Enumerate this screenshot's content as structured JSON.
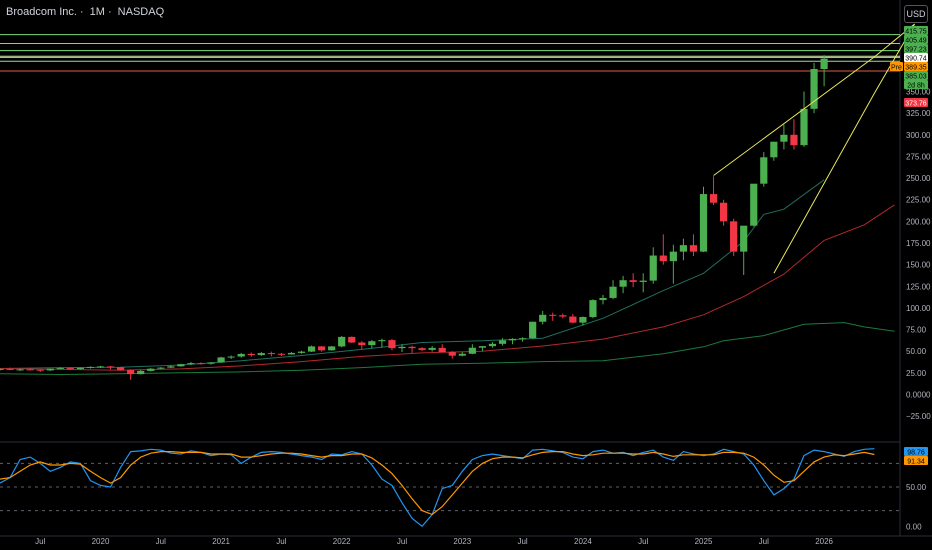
{
  "header": {
    "symbol_name": "Broadcom Inc.",
    "interval": "1M",
    "exchange": "NASDAQ",
    "separator": "·",
    "currency": "USD"
  },
  "colors": {
    "background": "#000000",
    "up": "#4caf50",
    "down": "#f23645",
    "ma_red": "#b2292e",
    "ma_teal": "#1f6f5f",
    "ma_green": "#1b7a3e",
    "wedge": "#e8e85a",
    "level_green": "#7cdd7c",
    "level_orange": "#f4a64a",
    "level_red": "#e05a4a",
    "rsi_blue": "#2196f3",
    "rsi_orange": "#ff9800"
  },
  "price_badges": [
    {
      "text": "415.75",
      "bg": "#4caf50",
      "fg": "#000000"
    },
    {
      "text": "405.49",
      "bg": "#4caf50",
      "fg": "#000000"
    },
    {
      "text": "397.23",
      "bg": "#4caf50",
      "fg": "#000000"
    },
    {
      "text": "390.74",
      "bg": "#ffffff",
      "fg": "#000000"
    },
    {
      "text": "Pre",
      "bg": "#ff9800",
      "fg": "#000000"
    },
    {
      "text": "389.35",
      "bg": "#ff9800",
      "fg": "#000000"
    },
    {
      "text": "385.03",
      "bg": "#4caf50",
      "fg": "#000000"
    },
    {
      "text": "2d 8h",
      "bg": "#4caf50",
      "fg": "#000000"
    },
    {
      "text": "373.76",
      "bg": "#f23645",
      "fg": "#ffffff"
    }
  ],
  "chart_data": [
    {
      "type": "candlestick",
      "title": "Broadcom Inc. · 1M · NASDAQ",
      "ylabel": "USD",
      "ylim": [
        -48,
        428
      ],
      "y_ticks": [
        350,
        325,
        300,
        275,
        250,
        225,
        200,
        175,
        150,
        125,
        100,
        75,
        50,
        25,
        0,
        -25
      ],
      "y_tick_labels": [
        "350.00",
        "325.00",
        "300.00",
        "275.00",
        "250.00",
        "225.00",
        "200.00",
        "175.00",
        "150.00",
        "125.00",
        "100.00",
        "75.00",
        "50.00",
        "25.00",
        "0.0000",
        "−25.00"
      ],
      "x_start": "2019-03",
      "x_ticks": [
        {
          "label": "Jul",
          "date": "2019-07"
        },
        {
          "label": "2020",
          "date": "2020-01"
        },
        {
          "label": "Jul",
          "date": "2020-07"
        },
        {
          "label": "2021",
          "date": "2021-01"
        },
        {
          "label": "Jul",
          "date": "2021-07"
        },
        {
          "label": "2022",
          "date": "2022-01"
        },
        {
          "label": "Jul",
          "date": "2022-07"
        },
        {
          "label": "2023",
          "date": "2023-01"
        },
        {
          "label": "Jul",
          "date": "2023-07"
        },
        {
          "label": "2024",
          "date": "2024-01"
        },
        {
          "label": "Jul",
          "date": "2024-07"
        },
        {
          "label": "2025",
          "date": "2025-01"
        },
        {
          "label": "Jul",
          "date": "2025-07"
        },
        {
          "label": "2026",
          "date": "2026-01"
        }
      ],
      "candles": [
        [
          28.7,
          30.2,
          27.5,
          29.5
        ],
        [
          29.5,
          31.0,
          28.0,
          28.4
        ],
        [
          28.4,
          29.8,
          27.0,
          29.0
        ],
        [
          29.0,
          30.5,
          28.0,
          28.6
        ],
        [
          28.6,
          29.0,
          26.0,
          27.8
        ],
        [
          27.8,
          30.0,
          27.0,
          29.8
        ],
        [
          29.8,
          31.5,
          29.0,
          30.5
        ],
        [
          30.5,
          31.5,
          28.5,
          29.2
        ],
        [
          29.2,
          31.0,
          28.5,
          30.8
        ],
        [
          30.8,
          32.5,
          30.0,
          31.8
        ],
        [
          31.8,
          33.0,
          30.5,
          32.4
        ],
        [
          32.4,
          33.0,
          29.0,
          31.5
        ],
        [
          31.5,
          32.0,
          27.5,
          28.2
        ],
        [
          28.2,
          29.0,
          17.0,
          23.5
        ],
        [
          23.5,
          28.5,
          23.0,
          27.2
        ],
        [
          27.2,
          30.5,
          26.5,
          29.8
        ],
        [
          29.8,
          31.5,
          29.0,
          31.0
        ],
        [
          31.0,
          33.5,
          30.5,
          32.5
        ],
        [
          32.5,
          35.5,
          32.0,
          35.0
        ],
        [
          35.0,
          37.5,
          34.0,
          36.2
        ],
        [
          36.2,
          37.0,
          34.5,
          35.5
        ],
        [
          35.5,
          37.5,
          34.5,
          37.0
        ],
        [
          37.0,
          43.5,
          36.5,
          42.8
        ],
        [
          42.8,
          45.0,
          41.0,
          43.8
        ],
        [
          43.8,
          48.0,
          42.5,
          46.8
        ],
        [
          46.8,
          48.5,
          43.5,
          45.5
        ],
        [
          45.5,
          49.0,
          44.5,
          47.8
        ],
        [
          47.8,
          49.5,
          44.0,
          47.0
        ],
        [
          47.0,
          48.0,
          44.5,
          46.2
        ],
        [
          46.2,
          49.0,
          46.0,
          48.0
        ],
        [
          48.0,
          50.5,
          47.0,
          49.5
        ],
        [
          49.5,
          56.5,
          49.0,
          55.5
        ],
        [
          55.5,
          56.0,
          49.5,
          51.0
        ],
        [
          51.0,
          56.0,
          50.5,
          55.5
        ],
        [
          55.5,
          67.5,
          54.5,
          66.5
        ],
        [
          66.5,
          67.0,
          59.5,
          60.0
        ],
        [
          60.0,
          61.5,
          52.0,
          57.0
        ],
        [
          57.0,
          63.0,
          53.5,
          61.5
        ],
        [
          61.5,
          64.5,
          54.0,
          62.8
        ],
        [
          62.8,
          64.0,
          51.0,
          53.5
        ],
        [
          53.5,
          58.0,
          49.0,
          55.0
        ],
        [
          55.0,
          56.5,
          48.0,
          53.5
        ],
        [
          53.5,
          54.5,
          50.0,
          51.5
        ],
        [
          51.5,
          56.0,
          49.5,
          53.8
        ],
        [
          53.8,
          58.0,
          52.5,
          49.0
        ],
        [
          49.0,
          50.0,
          41.5,
          44.8
        ],
        [
          44.8,
          49.0,
          44.0,
          47.0
        ],
        [
          47.0,
          58.0,
          46.5,
          54.0
        ],
        [
          54.0,
          56.0,
          50.0,
          55.8
        ],
        [
          55.8,
          60.5,
          54.0,
          58.5
        ],
        [
          58.5,
          65.0,
          56.5,
          62.5
        ],
        [
          62.5,
          65.0,
          58.0,
          64.2
        ],
        [
          64.2,
          66.0,
          61.0,
          65.0
        ],
        [
          65.0,
          84.0,
          64.5,
          84.0
        ],
        [
          84.0,
          96.5,
          81.0,
          92.0
        ],
        [
          92.0,
          94.5,
          85.0,
          91.5
        ],
        [
          91.5,
          93.5,
          88.0,
          90.0
        ],
        [
          90.0,
          93.0,
          82.5,
          83.0
        ],
        [
          83.0,
          90.0,
          79.5,
          89.5
        ],
        [
          89.5,
          110.0,
          88.0,
          109.0
        ],
        [
          109.0,
          115.0,
          104.0,
          111.5
        ],
        [
          111.5,
          132.0,
          110.0,
          124.5
        ],
        [
          124.5,
          137.0,
          117.0,
          132.0
        ],
        [
          132.0,
          140.0,
          124.0,
          130.0
        ],
        [
          130.0,
          140.0,
          118.0,
          131.5
        ],
        [
          131.5,
          170.0,
          128.0,
          160.5
        ],
        [
          160.5,
          185.0,
          150.0,
          154.0
        ],
        [
          154.0,
          173.0,
          128.0,
          165.0
        ],
        [
          165.0,
          180.0,
          155.0,
          172.5
        ],
        [
          172.5,
          185.0,
          160.0,
          165.0
        ],
        [
          165.0,
          240.0,
          164.5,
          231.5
        ],
        [
          231.5,
          252.0,
          219.0,
          221.5
        ],
        [
          221.5,
          225.0,
          195.0,
          200.0
        ],
        [
          200.0,
          203.0,
          160.0,
          165.0
        ],
        [
          165.0,
          192.0,
          138.0,
          195.0
        ],
        [
          195.0,
          240.0,
          194.0,
          243.5
        ],
        [
          243.5,
          280.0,
          240.0,
          274.0
        ],
        [
          274.0,
          292.0,
          270.0,
          292.0
        ],
        [
          292.0,
          312.0,
          283.0,
          300.0
        ],
        [
          300.0,
          318.0,
          283.0,
          288.0
        ],
        [
          288.0,
          350.0,
          286.0,
          330.0
        ],
        [
          330.0,
          383.0,
          325.0,
          376.0
        ],
        [
          376.0,
          392.0,
          356.0,
          388.0
        ]
      ],
      "ma_red": [
        [
          0,
          30
        ],
        [
          6,
          29
        ],
        [
          12,
          28
        ],
        [
          18,
          29.5
        ],
        [
          24,
          33
        ],
        [
          30,
          38
        ],
        [
          36,
          44
        ],
        [
          42,
          48
        ],
        [
          48,
          50
        ],
        [
          54,
          56
        ],
        [
          60,
          64
        ],
        [
          66,
          78
        ],
        [
          70,
          92
        ],
        [
          74,
          113
        ],
        [
          78,
          139
        ],
        [
          82,
          178
        ],
        [
          86,
          196
        ],
        [
          89,
          219
        ]
      ],
      "ma_teal_upper": [
        [
          0,
          30
        ],
        [
          6,
          31
        ],
        [
          12,
          31.5
        ],
        [
          18,
          34
        ],
        [
          24,
          39
        ],
        [
          30,
          45
        ],
        [
          36,
          52
        ],
        [
          42,
          60
        ],
        [
          48,
          62
        ],
        [
          54,
          65
        ],
        [
          60,
          88
        ],
        [
          66,
          120
        ],
        [
          70,
          140
        ],
        [
          74,
          177
        ],
        [
          76,
          208
        ],
        [
          78,
          214
        ],
        [
          82,
          248
        ]
      ],
      "ma_green_lower": [
        [
          0,
          24
        ],
        [
          6,
          23
        ],
        [
          12,
          24
        ],
        [
          18,
          25
        ],
        [
          24,
          26
        ],
        [
          30,
          28
        ],
        [
          36,
          31
        ],
        [
          42,
          35
        ],
        [
          48,
          36
        ],
        [
          54,
          38
        ],
        [
          60,
          39
        ],
        [
          66,
          47
        ],
        [
          70,
          55
        ],
        [
          72,
          62
        ],
        [
          76,
          68
        ],
        [
          80,
          81
        ],
        [
          84,
          83
        ],
        [
          86,
          78
        ],
        [
          89,
          73
        ]
      ],
      "wedge_upper": [
        [
          71,
          253
        ],
        [
          87,
          390
        ],
        [
          91,
          428
        ]
      ],
      "wedge_lower": [
        [
          77,
          140
        ],
        [
          87,
          348
        ],
        [
          91,
          428
        ]
      ],
      "levels": [
        {
          "value": 415.75,
          "color": "#7cdd7c"
        },
        {
          "value": 405.49,
          "color": "#7cdd7c"
        },
        {
          "value": 397.23,
          "color": "#7cdd7c"
        },
        {
          "value": 390.74,
          "color": "#cfe8a8"
        },
        {
          "value": 389.35,
          "color": "#f4a64a"
        },
        {
          "value": 385.03,
          "color": "#a6d89a"
        },
        {
          "value": 373.76,
          "color": "#e05a4a"
        }
      ]
    },
    {
      "type": "line",
      "title": "",
      "ylim": [
        -6,
        106
      ],
      "y_ticks": [
        50,
        0
      ],
      "y_tick_labels": [
        "50.00",
        "0.00"
      ],
      "dashed_levels": [
        80,
        50,
        20
      ],
      "last_values": [
        "98.76",
        "91.34"
      ],
      "series": [
        {
          "color": "#2196f3",
          "values": [
            55,
            62,
            85,
            88,
            80,
            70,
            75,
            82,
            80,
            58,
            52,
            50,
            75,
            95,
            96,
            98,
            97,
            93,
            92,
            96,
            94,
            90,
            92,
            91,
            80,
            88,
            94,
            95,
            94,
            92,
            90,
            88,
            85,
            92,
            91,
            95,
            92,
            78,
            60,
            52,
            30,
            10,
            0,
            15,
            48,
            52,
            70,
            85,
            90,
            92,
            90,
            88,
            86,
            97,
            98,
            96,
            94,
            88,
            86,
            95,
            97,
            93,
            94,
            90,
            94,
            97,
            88,
            84,
            95,
            92,
            90,
            92,
            98,
            95,
            92,
            78,
            58,
            40,
            48,
            60,
            90,
            97,
            95,
            92,
            89,
            95,
            98,
            98.76
          ]
        },
        {
          "color": "#ff9800",
          "values": [
            60,
            62,
            70,
            78,
            82,
            78,
            78,
            80,
            79,
            70,
            62,
            55,
            62,
            78,
            88,
            93,
            95,
            95,
            94,
            94,
            94,
            92,
            92,
            92,
            88,
            88,
            90,
            92,
            93,
            93,
            92,
            90,
            88,
            90,
            90,
            92,
            92,
            87,
            78,
            67,
            52,
            35,
            20,
            15,
            25,
            40,
            55,
            70,
            80,
            86,
            88,
            88,
            87,
            91,
            94,
            95,
            95,
            92,
            90,
            91,
            93,
            93,
            93,
            92,
            92,
            94,
            92,
            89,
            91,
            91,
            91,
            91,
            94,
            94,
            93,
            88,
            78,
            65,
            56,
            58,
            70,
            82,
            88,
            91,
            90,
            92,
            94,
            91.34
          ]
        }
      ]
    }
  ]
}
